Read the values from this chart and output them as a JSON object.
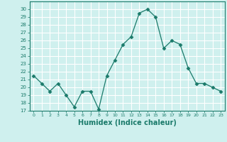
{
  "x": [
    0,
    1,
    2,
    3,
    4,
    5,
    6,
    7,
    8,
    9,
    10,
    11,
    12,
    13,
    14,
    15,
    16,
    17,
    18,
    19,
    20,
    21,
    22,
    23
  ],
  "y": [
    21.5,
    20.5,
    19.5,
    20.5,
    19.0,
    17.5,
    19.5,
    19.5,
    17.2,
    21.5,
    23.5,
    25.5,
    26.5,
    29.5,
    30.0,
    29.0,
    25.0,
    26.0,
    25.5,
    22.5,
    20.5,
    20.5,
    20.0,
    19.5
  ],
  "line_color": "#1a7a6a",
  "marker": "D",
  "marker_size": 2.5,
  "bg_color": "#cff0ee",
  "grid_color": "#ffffff",
  "tick_color": "#1a7a6a",
  "xlabel": "Humidex (Indice chaleur)",
  "xlabel_fontsize": 7,
  "ylim": [
    17,
    31
  ],
  "xlim": [
    -0.5,
    23.5
  ],
  "yticks": [
    17,
    18,
    19,
    20,
    21,
    22,
    23,
    24,
    25,
    26,
    27,
    28,
    29,
    30
  ],
  "xticks": [
    0,
    1,
    2,
    3,
    4,
    5,
    6,
    7,
    8,
    9,
    10,
    11,
    12,
    13,
    14,
    15,
    16,
    17,
    18,
    19,
    20,
    21,
    22,
    23
  ]
}
